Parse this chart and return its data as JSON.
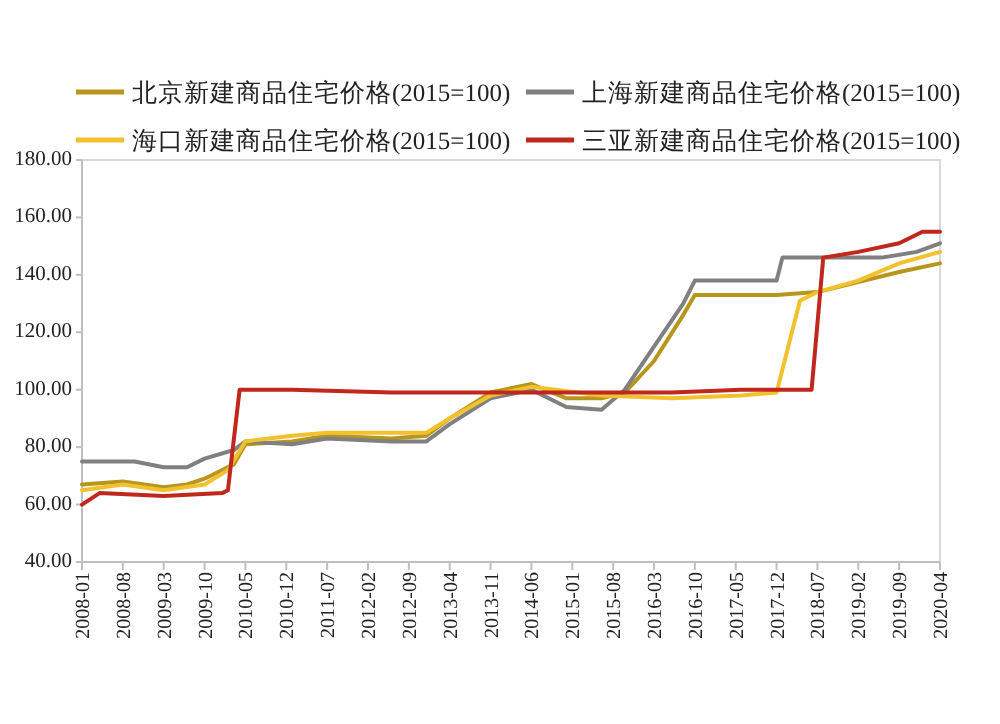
{
  "chart_data": {
    "type": "line",
    "legend": "top",
    "grid": false,
    "marker": "none",
    "line_style": "solid",
    "xlim": [
      "2008-01",
      "2020-04"
    ],
    "xticks": [
      "2008-01",
      "2008-08",
      "2009-03",
      "2009-10",
      "2010-05",
      "2010-12",
      "2011-07",
      "2012-02",
      "2012-09",
      "2013-04",
      "2013-11",
      "2014-06",
      "2015-01",
      "2015-08",
      "2016-03",
      "2016-10",
      "2017-05",
      "2017-12",
      "2018-07",
      "2019-02",
      "2019-09",
      "2020-04"
    ],
    "ylim": [
      40,
      180
    ],
    "yticks": [
      {
        "value": 40,
        "label": "40.00"
      },
      {
        "value": 60,
        "label": "60.00"
      },
      {
        "value": 80,
        "label": "80.00"
      },
      {
        "value": 100,
        "label": "100.00"
      },
      {
        "value": 120,
        "label": "120.00"
      },
      {
        "value": 140,
        "label": "140.00"
      },
      {
        "value": 160,
        "label": "160.00"
      },
      {
        "value": 180,
        "label": "180.00"
      }
    ],
    "series": [
      {
        "name": "北京新建商品住宅价格(2015=100)",
        "color": "#b8961e",
        "x": [
          "2008-01",
          "2008-08",
          "2009-03",
          "2009-07",
          "2009-10",
          "2010-03",
          "2010-05",
          "2011-01",
          "2011-07",
          "2012-06",
          "2012-12",
          "2013-04",
          "2013-11",
          "2014-06",
          "2014-12",
          "2015-06",
          "2015-10",
          "2016-03",
          "2016-08",
          "2016-10",
          "2017-12",
          "2018-07",
          "2019-03",
          "2019-09",
          "2020-04"
        ],
        "values": [
          67,
          68,
          66,
          67,
          69,
          74,
          81,
          82,
          84,
          83,
          84,
          90,
          99,
          102,
          97,
          97,
          99,
          110,
          126,
          133,
          133,
          134,
          138,
          141,
          144
        ]
      },
      {
        "name": "上海新建商品住宅价格(2015=100)",
        "color": "#808080",
        "x": [
          "2008-01",
          "2008-10",
          "2009-03",
          "2009-07",
          "2009-10",
          "2010-03",
          "2010-05",
          "2011-01",
          "2011-07",
          "2012-06",
          "2012-12",
          "2013-04",
          "2013-11",
          "2014-06",
          "2014-12",
          "2015-06",
          "2015-10",
          "2016-03",
          "2016-08",
          "2016-10",
          "2017-12",
          "2018-01",
          "2019-06",
          "2019-12",
          "2020-04"
        ],
        "values": [
          75,
          75,
          73,
          73,
          76,
          79,
          82,
          81,
          83,
          82,
          82,
          88,
          97,
          100,
          94,
          93,
          100,
          115,
          130,
          138,
          138,
          146,
          146,
          148,
          151
        ]
      },
      {
        "name": "海口新建商品住宅价格(2015=100)",
        "color": "#f2c12e",
        "x": [
          "2008-01",
          "2008-08",
          "2009-03",
          "2009-10",
          "2010-02",
          "2010-05",
          "2011-01",
          "2011-07",
          "2012-06",
          "2012-12",
          "2013-04",
          "2013-11",
          "2014-06",
          "2015-06",
          "2016-06",
          "2017-06",
          "2017-12",
          "2018-04",
          "2018-07",
          "2019-02",
          "2019-09",
          "2020-04"
        ],
        "values": [
          65,
          67,
          65,
          67,
          72,
          82,
          84,
          85,
          85,
          85,
          90,
          98,
          101,
          98,
          97,
          98,
          99,
          131,
          134,
          138,
          144,
          148
        ]
      },
      {
        "name": "三亚新建商品住宅价格(2015=100)",
        "color": "#c0281e",
        "x": [
          "2008-01",
          "2008-04",
          "2009-03",
          "2010-01",
          "2010-02",
          "2010-04",
          "2011-01",
          "2012-06",
          "2013-06",
          "2014-06",
          "2015-06",
          "2016-06",
          "2017-06",
          "2018-06",
          "2018-08",
          "2019-02",
          "2019-09",
          "2020-01",
          "2020-04"
        ],
        "values": [
          60,
          64,
          63,
          64,
          65,
          100,
          100,
          99,
          99,
          99,
          99,
          99,
          100,
          100,
          146,
          148,
          151,
          155,
          155
        ]
      }
    ]
  }
}
